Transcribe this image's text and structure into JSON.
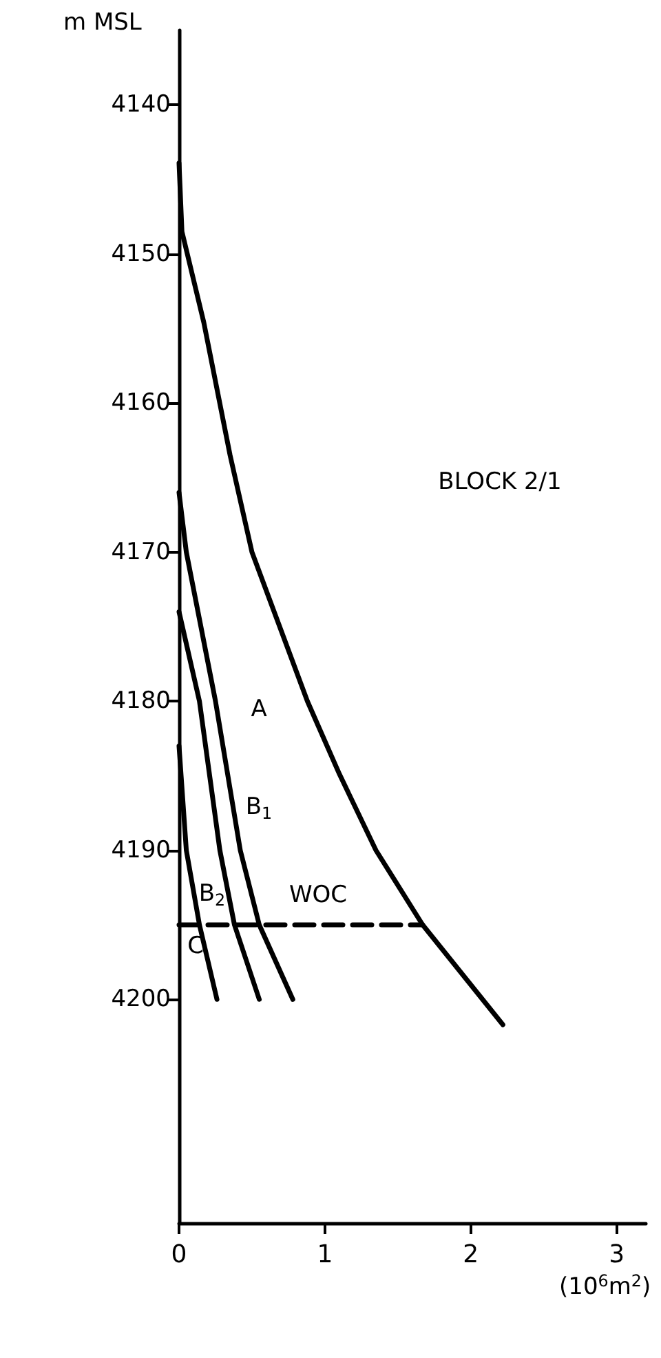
{
  "chart_data": {
    "type": "line",
    "ylabel": "m MSL",
    "xlabel": "(10$^{6}$m$^{2}$)",
    "marker": "none",
    "line_style": "solid",
    "grid": false,
    "xlim": [
      0,
      3.2
    ],
    "xticks": [
      0,
      1,
      2,
      3
    ],
    "ylim": [
      4215,
      4135
    ],
    "yticks": [
      4140,
      4150,
      4160,
      4170,
      4180,
      4190,
      4200
    ],
    "series": [
      {
        "color": "#000000",
        "x": [
          0,
          0.02,
          0.17,
          0.35,
          0.5,
          0.88,
          1.1,
          1.35,
          1.67,
          2.22
        ],
        "values": [
          4143.9,
          4148.5,
          4154.6,
          4163.5,
          4170,
          4180,
          4184.9,
          4190,
          4195,
          4201.7
        ]
      },
      {
        "color": "#000000",
        "x": [
          0,
          0.05,
          0.25,
          0.42,
          0.55,
          0.78
        ],
        "values": [
          4166,
          4170,
          4180,
          4190,
          4195,
          4200
        ]
      },
      {
        "color": "#000000",
        "x": [
          0,
          0.14,
          0.28,
          0.38,
          0.55
        ],
        "values": [
          4174,
          4180,
          4190,
          4195,
          4200
        ]
      },
      {
        "color": "#000000",
        "x": [
          0,
          0.05,
          0.14,
          0.26
        ],
        "values": [
          4183,
          4190,
          4195,
          4200
        ]
      },
      {
        "color": "#000000",
        "line_style": "dashed",
        "x": [
          0,
          1.67
        ],
        "values": [
          4195,
          4195
        ]
      }
    ],
    "annotations": [
      "BLOCK 2/1",
      "A",
      "B$_{1}$",
      "B$_{2}$",
      "C",
      "WOC"
    ]
  }
}
